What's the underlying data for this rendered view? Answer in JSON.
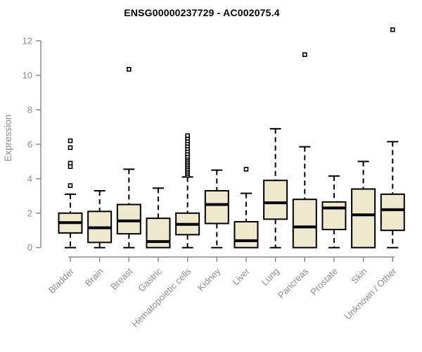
{
  "page": {
    "background": "#ffffff"
  },
  "chart_data": {
    "type": "boxplot",
    "title": "ENSG00000237729 - AC002075.4",
    "xlabel": "",
    "ylabel": "Expression",
    "ylim": [
      0,
      12
    ],
    "yticks": [
      0,
      2,
      4,
      6,
      8,
      10,
      12
    ],
    "grid": false,
    "legend": null,
    "colors": {
      "box_fill": "#EEE8CD",
      "box_stroke": "#000000",
      "median": "#000000",
      "whisker": "#000000",
      "outlier_stroke": "#000000",
      "outlier_fill": "#ffffff",
      "axis": "#8C8C8C",
      "title": "#000000"
    },
    "categories": [
      "Bladder",
      "Brain",
      "Breast",
      "Gastric",
      "Hematopoietic cells",
      "Kidney",
      "Liver",
      "Lung",
      "Pancreas",
      "Prostate",
      "Skin",
      "Unknown / Other"
    ],
    "boxes": [
      {
        "category": "Bladder",
        "low": 0,
        "q1": 0.85,
        "median": 1.45,
        "q3": 2.0,
        "high": 3.1,
        "outliers": [
          3.6,
          4.7,
          4.9,
          5.8,
          6.2
        ]
      },
      {
        "category": "Brain",
        "low": 0,
        "q1": 0.3,
        "median": 1.15,
        "q3": 2.1,
        "high": 3.3,
        "outliers": []
      },
      {
        "category": "Breast",
        "low": 0,
        "q1": 0.8,
        "median": 1.55,
        "q3": 2.5,
        "high": 4.55,
        "outliers": [
          10.35
        ]
      },
      {
        "category": "Gastric",
        "low": 0,
        "q1": 0,
        "median": 0.35,
        "q3": 1.7,
        "high": 3.45,
        "outliers": []
      },
      {
        "category": "Hematopoietic cells",
        "low": 0,
        "q1": 0.75,
        "median": 1.35,
        "q3": 2.0,
        "high": 4.1,
        "outliers": [
          4.2,
          4.3,
          4.4,
          4.5,
          4.6,
          4.7,
          4.8,
          4.9,
          5.0,
          5.1,
          5.2,
          5.3,
          5.45,
          5.6,
          5.75,
          5.9,
          6.05,
          6.2,
          6.35,
          6.5
        ]
      },
      {
        "category": "Kidney",
        "low": 0,
        "q1": 1.4,
        "median": 2.5,
        "q3": 3.3,
        "high": 4.5,
        "outliers": []
      },
      {
        "category": "Liver",
        "low": 0,
        "q1": 0,
        "median": 0.4,
        "q3": 1.5,
        "high": 3.15,
        "outliers": [
          4.55
        ]
      },
      {
        "category": "Lung",
        "low": 0,
        "q1": 1.65,
        "median": 2.6,
        "q3": 3.9,
        "high": 6.9,
        "outliers": []
      },
      {
        "category": "Pancreas",
        "low": 0,
        "q1": 0,
        "median": 1.2,
        "q3": 2.8,
        "high": 5.85,
        "outliers": [
          11.2
        ]
      },
      {
        "category": "Prostate",
        "low": 0,
        "q1": 1.05,
        "median": 2.3,
        "q3": 2.65,
        "high": 4.15,
        "outliers": []
      },
      {
        "category": "Skin",
        "low": 0,
        "q1": 0,
        "median": 1.9,
        "q3": 3.4,
        "high": 5.0,
        "outliers": []
      },
      {
        "category": "Unknown / Other",
        "low": 0,
        "q1": 1.0,
        "median": 2.2,
        "q3": 3.1,
        "high": 6.15,
        "outliers": [
          12.65
        ]
      }
    ]
  }
}
